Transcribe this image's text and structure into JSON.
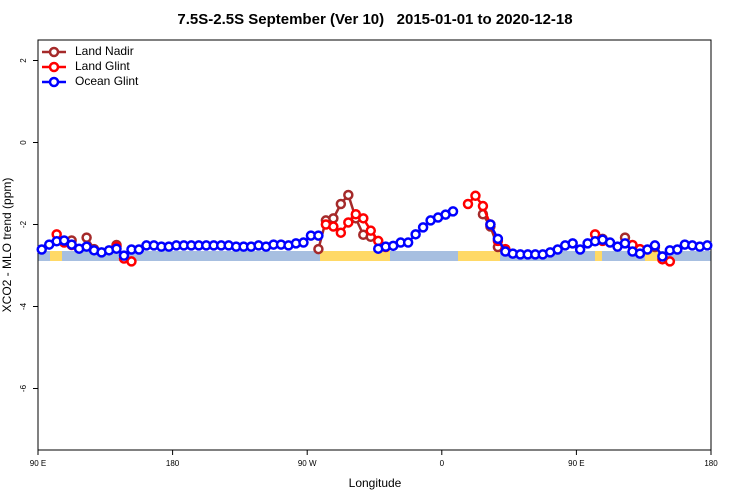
{
  "chart_data": {
    "type": "line",
    "title": "7.5S-2.5S September (Ver 10)   2015-01-01 to 2020-12-18",
    "x_label": "Longitude",
    "y_label": "XCO2 - MLO trend (ppm)",
    "x": [
      92.5,
      97.5,
      102.5,
      107.5,
      112.5,
      117.5,
      122.5,
      127.5,
      132.5,
      137.5,
      142.5,
      147.5,
      152.5,
      157.5,
      162.5,
      167.5,
      172.5,
      177.5,
      182.5,
      187.5,
      192.5,
      197.5,
      202.5,
      207.5,
      212.5,
      217.5,
      222.5,
      227.5,
      232.5,
      237.5,
      242.5,
      247.5,
      252.5,
      257.5,
      262.5,
      267.5,
      272.5,
      277.5,
      282.5,
      287.5,
      292.5,
      297.5,
      302.5,
      307.5,
      312.5,
      317.5,
      322.5,
      327.5,
      332.5,
      337.5,
      342.5,
      347.5,
      352.5,
      357.5,
      362.5,
      367.5,
      372.5,
      377.5,
      382.5,
      387.5,
      392.5,
      397.5,
      402.5,
      407.5,
      412.5,
      417.5,
      422.5,
      427.5,
      432.5,
      437.5,
      442.5,
      447.5,
      452.5,
      457.5,
      462.5,
      467.5,
      472.5,
      477.5,
      482.5,
      487.5,
      492.5,
      497.5,
      502.5,
      507.5,
      512.5,
      517.5,
      522.5,
      527.5,
      532.5,
      537.5
    ],
    "series": [
      {
        "name": "Land Nadir",
        "color": "#a52a2a",
        "values": [
          null,
          null,
          null,
          null,
          -2.39,
          null,
          -2.32,
          -2.6,
          null,
          null,
          -2.5,
          null,
          null,
          null,
          null,
          null,
          null,
          null,
          null,
          null,
          null,
          null,
          null,
          null,
          null,
          null,
          null,
          null,
          null,
          null,
          null,
          null,
          null,
          null,
          null,
          null,
          null,
          -2.6,
          -1.9,
          -1.85,
          -1.5,
          -1.28,
          -1.85,
          -2.25,
          -2.3,
          null,
          null,
          null,
          null,
          null,
          null,
          null,
          null,
          null,
          null,
          null,
          null,
          null,
          null,
          -1.75,
          -2.05,
          -2.55,
          null,
          null,
          null,
          null,
          null,
          null,
          null,
          null,
          null,
          null,
          null,
          null,
          null,
          -2.35,
          null,
          null,
          -2.32,
          null,
          null,
          null,
          -2.55,
          null,
          null,
          null,
          null,
          null,
          null,
          null
        ]
      },
      {
        "name": "Land Glint",
        "color": "#ff0000",
        "values": [
          null,
          null,
          -2.24,
          -2.44,
          -2.5,
          null,
          null,
          null,
          null,
          null,
          -2.54,
          -2.83,
          -2.9,
          null,
          null,
          null,
          null,
          null,
          null,
          null,
          null,
          null,
          null,
          null,
          null,
          null,
          null,
          null,
          null,
          null,
          null,
          null,
          null,
          null,
          null,
          null,
          null,
          null,
          -2.0,
          -2.05,
          -2.2,
          -1.95,
          -1.75,
          -1.85,
          -2.15,
          -2.4,
          -2.55,
          null,
          null,
          null,
          null,
          null,
          null,
          null,
          null,
          null,
          null,
          -1.5,
          -1.3,
          -1.55,
          -2.0,
          -2.4,
          -2.6,
          null,
          null,
          null,
          null,
          null,
          null,
          null,
          null,
          null,
          null,
          null,
          -2.24,
          -2.4,
          null,
          null,
          null,
          -2.5,
          -2.6,
          null,
          null,
          -2.85,
          -2.9,
          null,
          null,
          null,
          null,
          null
        ]
      },
      {
        "name": "Ocean Glint",
        "color": "#0000ff",
        "values": [
          -2.61,
          -2.49,
          -2.41,
          -2.39,
          -2.49,
          -2.59,
          -2.54,
          -2.63,
          -2.68,
          -2.63,
          -2.59,
          -2.76,
          -2.61,
          -2.61,
          -2.51,
          -2.51,
          -2.54,
          -2.54,
          -2.51,
          -2.51,
          -2.51,
          -2.51,
          -2.51,
          -2.51,
          -2.51,
          -2.51,
          -2.54,
          -2.54,
          -2.54,
          -2.51,
          -2.54,
          -2.49,
          -2.49,
          -2.51,
          -2.46,
          -2.44,
          -2.27,
          -2.27,
          null,
          null,
          null,
          null,
          null,
          null,
          null,
          -2.59,
          -2.54,
          -2.52,
          -2.44,
          -2.44,
          -2.24,
          -2.07,
          -1.9,
          -1.83,
          -1.76,
          -1.68,
          null,
          null,
          null,
          null,
          -2.0,
          -2.35,
          -2.66,
          -2.71,
          -2.73,
          -2.73,
          -2.73,
          -2.73,
          -2.68,
          -2.61,
          -2.51,
          -2.46,
          -2.61,
          -2.46,
          -2.41,
          -2.37,
          -2.44,
          -2.54,
          -2.46,
          -2.66,
          -2.71,
          -2.61,
          -2.51,
          -2.78,
          -2.63,
          -2.61,
          -2.49,
          -2.51,
          -2.54,
          -2.51
        ]
      }
    ],
    "xlim": [
      90,
      540
    ],
    "xticks": [
      {
        "value": 90,
        "label": "90 E"
      },
      180,
      {
        "value": 270,
        "label": "90 W"
      },
      {
        "value": 360,
        "label": "0"
      },
      {
        "value": 450,
        "label": "90 E"
      },
      {
        "value": 540,
        "label": "180"
      }
    ],
    "ylim": [
      -7.5,
      2.5
    ],
    "yticks": [
      -6,
      -4,
      -2,
      0,
      2
    ],
    "legend": "top-left"
  }
}
